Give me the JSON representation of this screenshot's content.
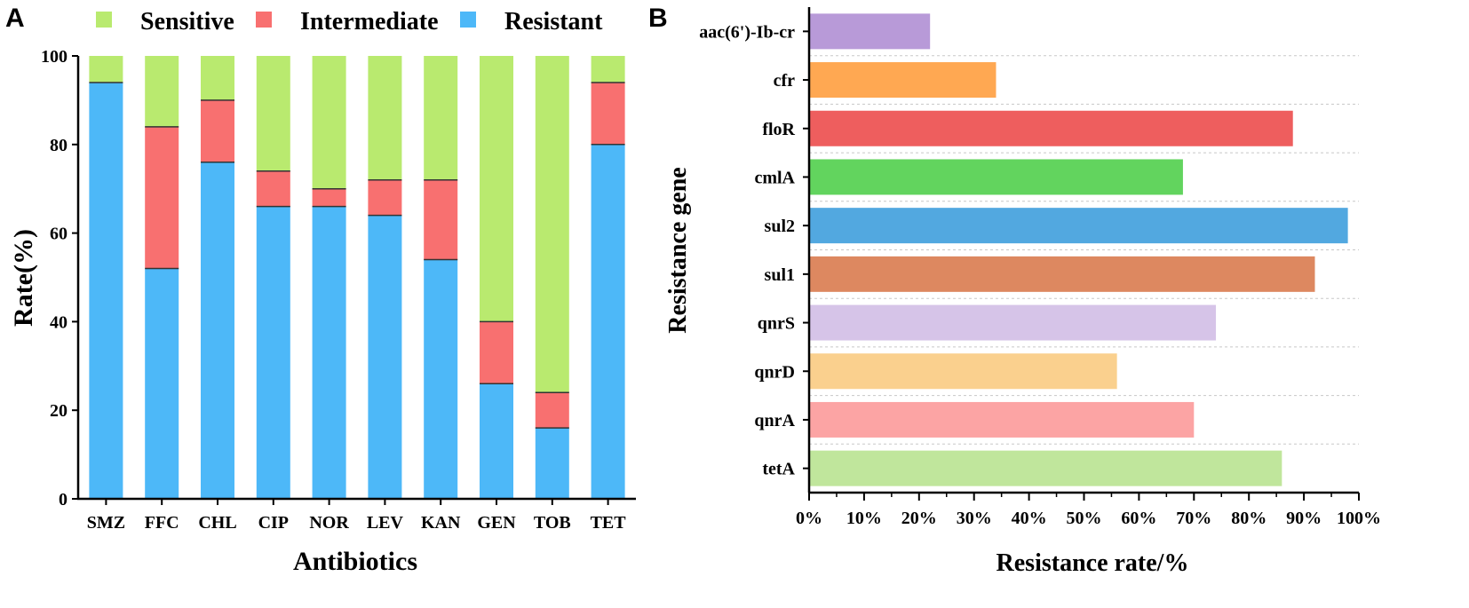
{
  "chart_data": [
    {
      "panel": "A",
      "type": "bar",
      "stacked": true,
      "categories": [
        "SMZ",
        "FFC",
        "CHL",
        "CIP",
        "NOR",
        "LEV",
        "KAN",
        "GEN",
        "TOB",
        "TET"
      ],
      "series": [
        {
          "name": "Resistant",
          "color": "#4db8f8",
          "values": [
            94,
            52,
            76,
            66,
            66,
            64,
            54,
            26,
            16,
            80
          ]
        },
        {
          "name": "Intermediate",
          "color": "#f87070",
          "values": [
            0,
            32,
            14,
            8,
            4,
            8,
            18,
            14,
            8,
            14
          ]
        },
        {
          "name": "Sensitive",
          "color": "#b9ea6f",
          "values": [
            6,
            16,
            10,
            26,
            30,
            28,
            28,
            60,
            76,
            6
          ]
        }
      ],
      "legend_order": [
        "Sensitive",
        "Intermediate",
        "Resistant"
      ],
      "legend_position": "top",
      "xlabel": "Antibiotics",
      "ylabel": "Rate(%)",
      "ylim": [
        0,
        100
      ],
      "yticks": [
        "0",
        "20",
        "40",
        "60",
        "80",
        "100"
      ]
    },
    {
      "panel": "B",
      "type": "bar",
      "orientation": "horizontal",
      "categories": [
        "aac(6')-Ib-cr",
        "cfr",
        "floR",
        "cmlA",
        "sul2",
        "sul1",
        "qnrS",
        "qnrD",
        "qnrA",
        "tetA"
      ],
      "values": [
        22,
        34,
        88,
        68,
        98,
        92,
        74,
        56,
        70,
        86
      ],
      "colors": [
        "#b89ad8",
        "#ffa852",
        "#ee5e5e",
        "#62d45e",
        "#52a8e0",
        "#dd8860",
        "#d6c4e8",
        "#fad08e",
        "#fca4a4",
        "#c0e69c"
      ],
      "xlabel": "Resistance rate/%",
      "ylabel": "Resistance gene",
      "xlim": [
        0,
        100
      ],
      "xticks": [
        "0%",
        "10%",
        "20%",
        "30%",
        "40%",
        "50%",
        "60%",
        "70%",
        "80%",
        "90%",
        "100%"
      ],
      "grid": "horizontal dashed"
    }
  ]
}
